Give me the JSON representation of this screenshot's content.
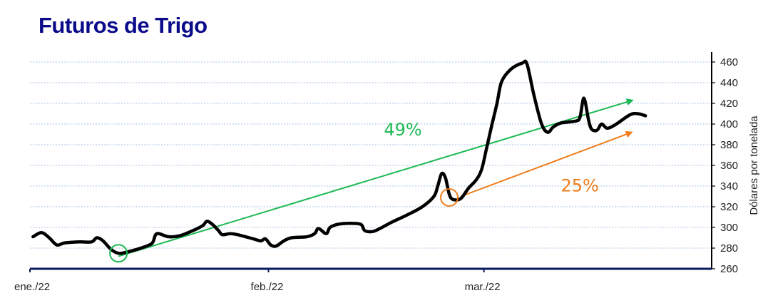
{
  "title": "Futuros de Trigo",
  "chart_data": {
    "type": "line",
    "title": "Futuros de Trigo",
    "xlabel": "",
    "ylabel": "Dólares por tonelada",
    "y_axis_position": "right",
    "ylim": [
      260,
      460
    ],
    "yticks": [
      260,
      280,
      300,
      320,
      340,
      360,
      380,
      400,
      420,
      440,
      460
    ],
    "grid": true,
    "xticks": [
      {
        "label": "ene./22",
        "day": 0
      },
      {
        "label": "feb./22",
        "day": 31
      },
      {
        "label": "mar./22",
        "day": 59
      }
    ],
    "xlim_days": [
      0,
      80
    ],
    "series": [
      {
        "name": "",
        "color": "#000000",
        "points": [
          [
            0.4,
            291
          ],
          [
            1.5,
            295
          ],
          [
            2.5,
            290
          ],
          [
            3.5,
            283
          ],
          [
            4.5,
            285
          ],
          [
            6.5,
            286
          ],
          [
            8.0,
            286
          ],
          [
            8.7,
            290
          ],
          [
            9.5,
            287
          ],
          [
            10.5,
            279
          ],
          [
            11.5,
            275
          ],
          [
            12.5,
            276
          ],
          [
            14.0,
            279
          ],
          [
            15.5,
            283
          ],
          [
            16.0,
            286
          ],
          [
            16.5,
            294
          ],
          [
            18.0,
            291
          ],
          [
            19.5,
            292
          ],
          [
            21.5,
            298
          ],
          [
            22.5,
            302
          ],
          [
            23.0,
            306
          ],
          [
            23.7,
            303
          ],
          [
            24.5,
            297
          ],
          [
            25.0,
            293
          ],
          [
            26.0,
            294
          ],
          [
            27.0,
            293
          ],
          [
            29.0,
            289
          ],
          [
            30.0,
            287
          ],
          [
            30.6,
            289
          ],
          [
            31.3,
            283
          ],
          [
            32.0,
            282
          ],
          [
            33.0,
            287
          ],
          [
            34.0,
            290
          ],
          [
            36.0,
            291
          ],
          [
            37.0,
            294
          ],
          [
            37.5,
            299
          ],
          [
            38.5,
            294
          ],
          [
            39.0,
            300
          ],
          [
            40.0,
            303
          ],
          [
            41.5,
            304
          ],
          [
            43.0,
            303
          ],
          [
            43.5,
            297
          ],
          [
            44.5,
            296
          ],
          [
            45.5,
            299
          ],
          [
            47.0,
            305
          ],
          [
            49.0,
            312
          ],
          [
            51.0,
            320
          ],
          [
            52.5,
            330
          ],
          [
            53.0,
            340
          ],
          [
            53.5,
            352
          ],
          [
            54.0,
            348
          ],
          [
            54.5,
            332
          ],
          [
            55.0,
            327
          ],
          [
            56.0,
            328
          ],
          [
            57.0,
            338
          ],
          [
            58.0,
            346
          ],
          [
            58.7,
            356
          ],
          [
            59.3,
            375
          ],
          [
            60.0,
            398
          ],
          [
            60.7,
            420
          ],
          [
            61.3,
            441
          ],
          [
            62.5,
            453
          ],
          [
            64.0,
            459
          ],
          [
            64.6,
            458
          ],
          [
            65.5,
            428
          ],
          [
            66.5,
            400
          ],
          [
            67.3,
            392
          ],
          [
            68.0,
            397
          ],
          [
            69.0,
            401
          ],
          [
            71.0,
            403
          ],
          [
            71.5,
            407
          ],
          [
            72.0,
            425
          ],
          [
            72.6,
            404
          ],
          [
            73.0,
            395
          ],
          [
            73.7,
            394
          ],
          [
            74.3,
            400
          ],
          [
            75.0,
            396
          ],
          [
            76.0,
            399
          ],
          [
            78.0,
            409
          ],
          [
            79.0,
            410
          ],
          [
            80.0,
            408
          ]
        ]
      }
    ],
    "annotations": [
      {
        "type": "arrow",
        "color": "#1db954",
        "from": [
          11.5,
          272
        ],
        "to": [
          78.3,
          423
        ]
      },
      {
        "type": "arrow",
        "color": "#ee7d1c",
        "from": [
          56.0,
          330
        ],
        "to": [
          78.2,
          392
        ]
      },
      {
        "type": "circle",
        "color": "#1db954",
        "at": [
          11.5,
          275
        ]
      },
      {
        "type": "circle",
        "color": "#ee7d1c",
        "at": [
          54.5,
          329
        ]
      },
      {
        "type": "text",
        "text": "49%",
        "color": "#1db954",
        "at": [
          46.0,
          389
        ]
      },
      {
        "type": "text",
        "text": "25%",
        "color": "#ee7d1c",
        "at": [
          69.0,
          335
        ]
      }
    ]
  }
}
